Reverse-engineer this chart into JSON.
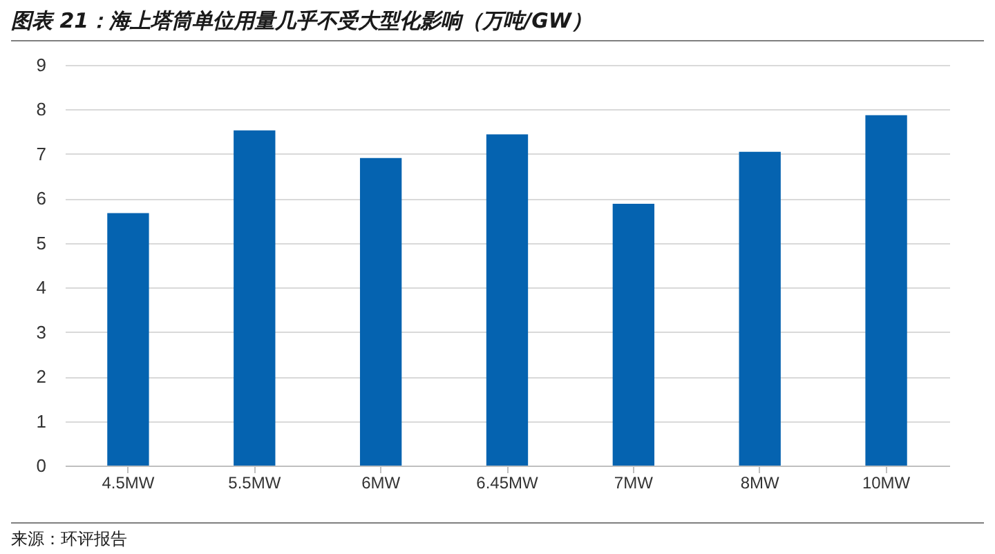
{
  "chart_data": {
    "type": "bar",
    "title": "图表 21：海上塔筒单位用量几乎不受大型化影响（万吨/GW）",
    "categories": [
      "4.5MW",
      "5.5MW",
      "6MW",
      "6.45MW",
      "7MW",
      "8MW",
      "10MW"
    ],
    "values": [
      5.67,
      7.53,
      6.91,
      7.44,
      5.88,
      7.05,
      7.87
    ],
    "color": "#0563b0",
    "ylim": [
      0,
      9
    ],
    "yticks": [
      0,
      1,
      2,
      3,
      4,
      5,
      6,
      7,
      8,
      9
    ],
    "grid": "y",
    "legend": false,
    "annotations": [
      "来源：环评报告"
    ]
  }
}
